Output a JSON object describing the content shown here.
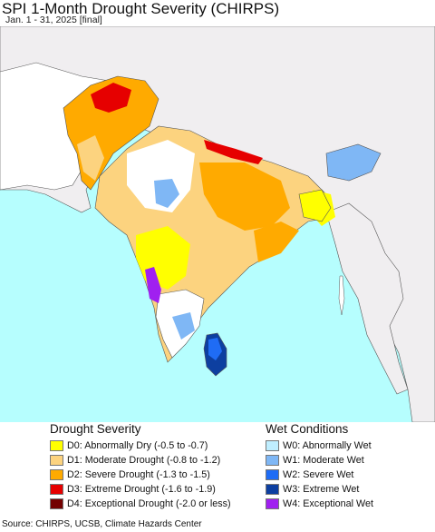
{
  "header": {
    "title": "SPI 1-Month Drought Severity (CHIRPS)",
    "subtitle": "Jan. 1 - 31, 2025 [final]"
  },
  "map": {
    "region": "South Asia",
    "colors": {
      "ocean": "#b6fefe",
      "land_background": "#f0eef0",
      "no_drought": "#ffffff",
      "boundary": "#555555"
    }
  },
  "legend": {
    "drought": {
      "heading": "Drought Severity",
      "items": [
        {
          "label": "D0: Abnormally Dry (-0.5 to -0.7)",
          "color": "#ffff00"
        },
        {
          "label": "D1: Moderate Drought (-0.8 to -1.2)",
          "color": "#fcd37f"
        },
        {
          "label": "D2: Severe Drought (-1.3 to -1.5)",
          "color": "#ffaa00"
        },
        {
          "label": "D3: Extreme Drought (-1.6 to -1.9)",
          "color": "#e60000"
        },
        {
          "label": "D4: Exceptional Drought (-2.0 or less)",
          "color": "#730000"
        }
      ]
    },
    "wet": {
      "heading": "Wet Conditions",
      "items": [
        {
          "label": "W0: Abnormally Wet",
          "color": "#bfeeff"
        },
        {
          "label": "W1: Moderate Wet",
          "color": "#7fb7f5"
        },
        {
          "label": "W2: Severe Wet",
          "color": "#1f6cf5"
        },
        {
          "label": "W3: Extreme Wet",
          "color": "#0d3fa0"
        },
        {
          "label": "W4: Exceptional Wet",
          "color": "#a020f0"
        }
      ]
    }
  },
  "footer": {
    "source": "Source: CHIRPS, UCSB, Climate Hazards Center"
  }
}
